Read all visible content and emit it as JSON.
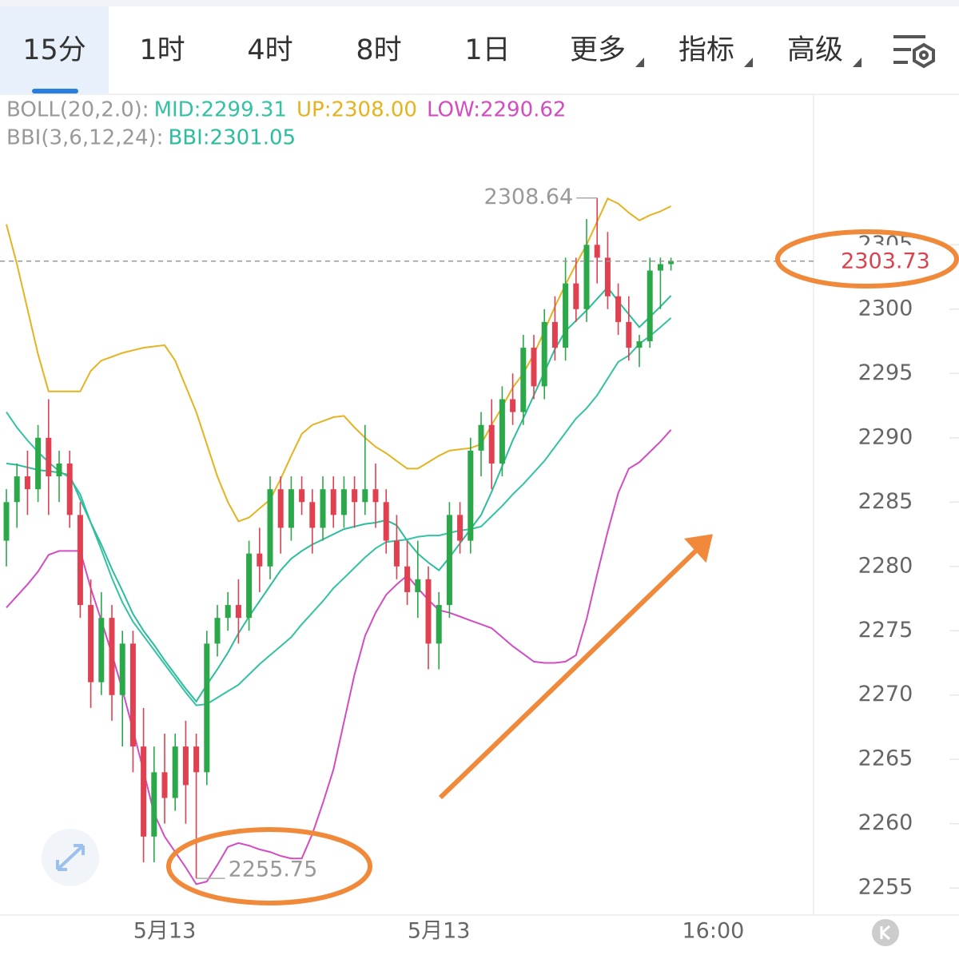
{
  "toolbar": {
    "tabs": [
      "15分",
      "1时",
      "4时",
      "8时",
      "1日",
      "更多",
      "指标",
      "高级"
    ]
  },
  "chart_data": {
    "type": "candlestick",
    "categories": [
      null,
      null,
      null,
      null,
      null,
      null,
      null,
      null,
      null,
      null,
      null,
      null,
      null,
      null,
      null,
      "5月13",
      null,
      null,
      null,
      null,
      null,
      null,
      null,
      null,
      null,
      null,
      null,
      null,
      null,
      null,
      null,
      null,
      null,
      null,
      null,
      null,
      null,
      null,
      null,
      null,
      null,
      "5月13",
      null,
      null,
      null,
      null,
      null,
      null,
      null,
      null,
      null,
      null,
      null,
      null,
      null,
      null,
      null,
      null,
      null,
      null,
      null,
      null,
      null,
      null,
      null,
      null,
      null,
      "16:00"
    ],
    "up_color": "#2ba84a",
    "down_color": "#e0404f",
    "open": [
      2282,
      2285,
      2287,
      2286,
      2290,
      2287,
      2288,
      2284,
      2277,
      2271,
      2276,
      2270,
      2274,
      2266,
      2259,
      2264,
      2262,
      2266,
      2266,
      2264,
      2274,
      2276,
      2277,
      2276,
      2281,
      2280,
      2286,
      2283,
      2286,
      2285,
      2283,
      2286,
      2284,
      2286,
      2285,
      2286,
      2285,
      2282,
      2280,
      2278,
      2279,
      2274,
      2277,
      2284,
      2282,
      2289,
      2291,
      2288,
      2293,
      2292,
      2297,
      2294,
      2299,
      2297,
      2302,
      2300,
      2305,
      2304,
      2301,
      2299,
      2297,
      2297.5,
      2303,
      2303.5,
      null,
      null,
      null,
      null
    ],
    "high": [
      2286,
      2288,
      2289,
      2291,
      2293,
      2289,
      2289,
      2285,
      2279,
      2278,
      2277,
      2275,
      2275,
      2269,
      2266,
      2267,
      2267,
      2268,
      2267,
      2275,
      2277,
      2278,
      2279,
      2282,
      2283,
      2287,
      2287,
      2287,
      2287,
      2286,
      2287,
      2287,
      2287,
      2287,
      2291,
      2288,
      2286,
      2284,
      2282,
      2282,
      2280,
      2278,
      2285,
      2285,
      2290,
      2292,
      2293,
      2294,
      2295,
      2298,
      2298,
      2300,
      2301,
      2304,
      2304,
      2307,
      2308.64,
      2306,
      2302,
      2301,
      2298,
      2304,
      2304,
      2304,
      null,
      null,
      null,
      null
    ],
    "low": [
      2280,
      2283,
      2284,
      2285,
      2284,
      2285,
      2283,
      2276,
      2269,
      2270,
      2268,
      2266,
      2264,
      2257,
      2257,
      2260,
      2261,
      2260,
      2255.75,
      2263,
      2273,
      2275,
      2274,
      2275,
      2278,
      2279,
      2281,
      2282,
      2284,
      2281,
      2282,
      2283,
      2283,
      2283,
      2284,
      2283,
      2281,
      2279,
      2277,
      2276,
      2272,
      2272,
      2276,
      2281,
      2281,
      2287,
      2286,
      2287,
      2291,
      2291,
      2293,
      2293,
      2296,
      2296,
      2299,
      2299,
      2302,
      2300,
      2298,
      2296,
      2295.5,
      2297,
      2300,
      2303,
      null,
      null,
      null,
      null
    ],
    "close": [
      2285,
      2287,
      2286,
      2290,
      2287,
      2288,
      2284,
      2277,
      2271,
      2276,
      2270,
      2274,
      2266,
      2259,
      2264,
      2262,
      2266,
      2263,
      2264,
      2274,
      2276,
      2277,
      2276,
      2281,
      2280,
      2286,
      2283,
      2286,
      2285,
      2283,
      2286,
      2284,
      2286,
      2285,
      2286,
      2285,
      2282,
      2280,
      2278,
      2279,
      2274,
      2277,
      2284,
      2282,
      2289,
      2291,
      2288,
      2293,
      2292,
      2297,
      2294,
      2299,
      2297,
      2302,
      2300,
      2305,
      2304,
      2301,
      2299,
      2297,
      2297.5,
      2303,
      2303.5,
      2303.73,
      null,
      null,
      null,
      null
    ],
    "indicators": [
      {
        "label": "BOLL(20,2.0):",
        "series": [
          {
            "name": "MID:",
            "color": "#35c2a4",
            "values": [
              2292,
              2290.8,
              2289.8,
              2288.9,
              2288.1,
              2287.4,
              2286.9,
              2285.6,
              2283.4,
              2281.3,
              2279.1,
              2277.2,
              2275.7,
              2274.6,
              2273.5,
              2272.4,
              2271.3,
              2270.2,
              2269.2,
              2269.3,
              2269.8,
              2270.3,
              2270.8,
              2271.6,
              2272.4,
              2273.1,
              2273.8,
              2274.5,
              2275.5,
              2276.4,
              2277.3,
              2278.3,
              2279.1,
              2279.9,
              2280.7,
              2281.4,
              2281.9,
              2282,
              2282.1,
              2282.3,
              2282.4,
              2282.4,
              2282.6,
              2282.8,
              2282.9,
              2283.1,
              2283.9,
              2284.7,
              2285.6,
              2286.4,
              2287.3,
              2288.2,
              2289.3,
              2290.4,
              2291.5,
              2292.3,
              2293.3,
              2294.6,
              2295.9,
              2296.4,
              2297.3,
              2297.9,
              2298.6,
              2299.31,
              null,
              null,
              null,
              null
            ]
          },
          {
            "name": "UP:",
            "color": "#e5b320",
            "values": [
              2306.6,
              2303.5,
              2300,
              2296.5,
              2293.6,
              2293.6,
              2293.6,
              2293.6,
              2295.2,
              2296,
              2296.3,
              2296.6,
              2296.8,
              2297,
              2297.1,
              2297.2,
              2296,
              2294,
              2292,
              2289.5,
              2287,
              2285,
              2283.5,
              2283.8,
              2284.5,
              2285.2,
              2286.8,
              2288.6,
              2290.3,
              2291,
              2291.3,
              2291.6,
              2291.7,
              2290.8,
              2290,
              2289.3,
              2288.8,
              2288.2,
              2287.6,
              2287.6,
              2288.1,
              2288.6,
              2289,
              2289.1,
              2289.2,
              2289.5,
              2291,
              2292.4,
              2293.9,
              2295,
              2296.5,
              2298.3,
              2300.2,
              2301.9,
              2303.5,
              2305,
              2306.8,
              2308.6,
              2308.2,
              2307.5,
              2306.9,
              2307.3,
              2307.6,
              2308,
              null,
              null,
              null,
              null
            ],
            "value_labels": [
              null,
              null,
              null,
              null,
              null,
              null,
              null,
              null,
              null,
              null,
              null,
              null,
              null,
              null,
              null,
              null,
              null,
              null,
              null,
              null,
              null,
              null,
              null,
              null,
              null,
              null,
              null,
              null,
              null,
              null,
              null,
              null,
              null,
              null,
              null,
              null,
              null,
              null,
              null,
              null,
              null,
              null,
              null,
              null,
              null,
              null,
              null,
              null,
              null,
              null,
              null,
              null,
              null,
              null,
              null,
              null,
              null,
              null,
              null,
              null,
              null,
              null,
              null,
              "2308.00",
              null,
              null,
              null,
              null
            ]
          },
          {
            "name": "LOW:",
            "color": "#d24cc2",
            "values": [
              2276.8,
              2277.7,
              2278.6,
              2279.6,
              2280.9,
              2281.2,
              2281.2,
              2281.2,
              2278.3,
              2275.8,
              2273.2,
              2270.4,
              2267.3,
              2264.1,
              2260.8,
              2259,
              2257.8,
              2256.6,
              2255.3,
              2255.5,
              2256.8,
              2258.2,
              2258.5,
              2258.3,
              2258,
              2257.8,
              2257.5,
              2257.3,
              2257.3,
              2259.2,
              2261.6,
              2264.2,
              2267.9,
              2271.6,
              2274.6,
              2276.4,
              2277.8,
              2278.6,
              2279.3,
              2278.3,
              2277.4,
              2276.6,
              2276.4,
              2276.1,
              2275.8,
              2275.5,
              2275.2,
              2274.5,
              2273.8,
              2273.2,
              2272.6,
              2272.5,
              2272.5,
              2272.6,
              2273.1,
              2275.9,
              2279.4,
              2282.7,
              2285.7,
              2287.6,
              2288.1,
              2288.9,
              2289.7,
              2290.62,
              null,
              null,
              null,
              null
            ]
          }
        ]
      },
      {
        "label": "BBI(3,6,12,24):",
        "series": [
          {
            "name": "BBI:",
            "color": "#2bbd9c",
            "values": [
              2288,
              2287.9,
              2287.7,
              2287.5,
              2287.4,
              2287.3,
              2287.1,
              2285.2,
              2283.4,
              2281.7,
              2279.8,
              2278.1,
              2276.3,
              2275,
              2273.9,
              2272.7,
              2271.6,
              2270.5,
              2269.5,
              2270.8,
              2272,
              2273.3,
              2274.8,
              2276.1,
              2277.3,
              2278.5,
              2279.7,
              2280.6,
              2281.2,
              2281.7,
              2282.1,
              2282.5,
              2282.9,
              2283.1,
              2283.3,
              2283.4,
              2283.6,
              2283.2,
              2282,
              2281,
              2280.3,
              2279.7,
              2280.7,
              2281.8,
              2282.9,
              2284,
              2285.8,
              2287.8,
              2289.8,
              2291.5,
              2293.3,
              2295.1,
              2296.9,
              2298.3,
              2299.1,
              2299.9,
              2300.8,
              2301.7,
              2300.6,
              2299.6,
              2298.6,
              2299.4,
              2300.2,
              2301.05,
              null,
              null,
              null,
              null
            ]
          }
        ]
      }
    ],
    "ylim": [
      2252.9,
      2316.7
    ],
    "yticks": [
      2255,
      2260,
      2265,
      2270,
      2275,
      2280,
      2285,
      2290,
      2295,
      2300,
      2305
    ],
    "grid": true
  }
}
